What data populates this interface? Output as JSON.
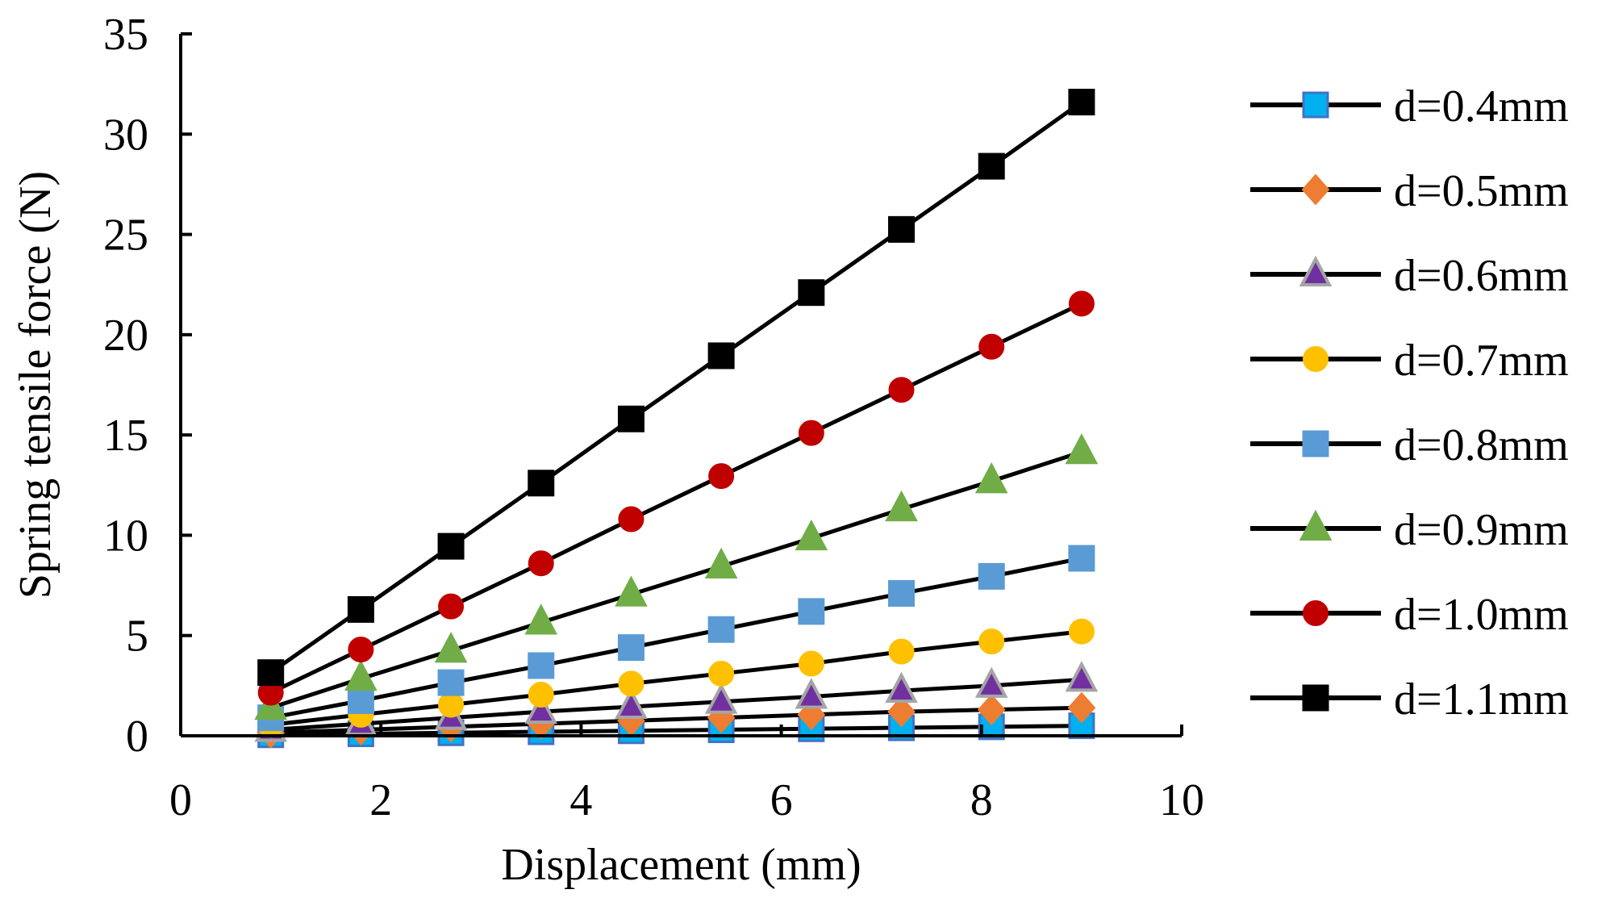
{
  "chart_data": {
    "type": "line",
    "title": "",
    "xlabel": "Displacement (mm)",
    "ylabel": "Spring tensile force (N)",
    "xlim": [
      0,
      10
    ],
    "ylim": [
      0,
      35
    ],
    "xticks": [
      0,
      2,
      4,
      6,
      8,
      10
    ],
    "yticks": [
      0,
      5,
      10,
      15,
      20,
      25,
      30,
      35
    ],
    "grid": false,
    "legend_position": "right",
    "x": [
      0.9,
      1.8,
      2.7,
      3.6,
      4.5,
      5.4,
      6.3,
      7.2,
      8.1,
      9.0
    ],
    "series": [
      {
        "name": "d=0.4mm",
        "marker": "square",
        "color": "#00B0F0",
        "stroke": "#4472C4",
        "values": [
          0.05,
          0.1,
          0.15,
          0.2,
          0.25,
          0.3,
          0.35,
          0.4,
          0.45,
          0.5
        ]
      },
      {
        "name": "d=0.5mm",
        "marker": "diamond",
        "color": "#ED7D31",
        "stroke": "#ED7D31",
        "values": [
          0.15,
          0.3,
          0.45,
          0.6,
          0.75,
          0.9,
          1.05,
          1.2,
          1.3,
          1.4
        ]
      },
      {
        "name": "d=0.6mm",
        "marker": "triangle",
        "color": "#7030A0",
        "stroke": "#A5A5A5",
        "values": [
          0.3,
          0.6,
          0.9,
          1.2,
          1.45,
          1.7,
          1.95,
          2.25,
          2.5,
          2.8
        ]
      },
      {
        "name": "d=0.7mm",
        "marker": "circle",
        "color": "#FFC000",
        "stroke": "#FFC000",
        "values": [
          0.55,
          1.05,
          1.55,
          2.05,
          2.6,
          3.1,
          3.6,
          4.2,
          4.7,
          5.2
        ]
      },
      {
        "name": "d=0.8mm",
        "marker": "square",
        "color": "#5B9BD5",
        "stroke": "#5B9BD5",
        "values": [
          0.9,
          1.75,
          2.65,
          3.5,
          4.4,
          5.3,
          6.2,
          7.1,
          7.95,
          8.85
        ]
      },
      {
        "name": "d=0.9mm",
        "marker": "triangle",
        "color": "#70AD47",
        "stroke": "#70AD47",
        "values": [
          1.4,
          2.85,
          4.25,
          5.65,
          7.05,
          8.45,
          9.85,
          11.3,
          12.7,
          14.15
        ]
      },
      {
        "name": "d=1.0mm",
        "marker": "circle",
        "color": "#C00000",
        "stroke": "#C00000",
        "values": [
          2.15,
          4.3,
          6.45,
          8.6,
          10.8,
          12.95,
          15.1,
          17.25,
          19.4,
          21.55
        ]
      },
      {
        "name": "d=1.1mm",
        "marker": "square",
        "color": "#000000",
        "stroke": "#000000",
        "values": [
          3.15,
          6.3,
          9.45,
          12.6,
          15.8,
          18.95,
          22.1,
          25.25,
          28.4,
          31.6
        ]
      }
    ]
  }
}
